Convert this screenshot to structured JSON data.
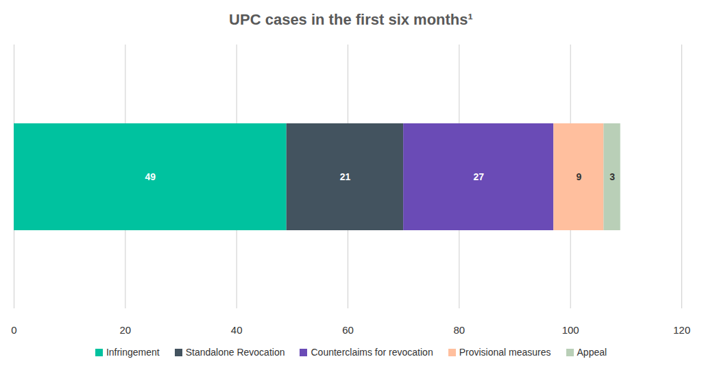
{
  "chart_data": {
    "type": "bar",
    "title": "UPC cases in the first six months¹",
    "orientation": "horizontal",
    "stacked": true,
    "data_labels": true,
    "categories": [
      null
    ],
    "series": [
      {
        "name": "Infringement",
        "color": "#00c29f",
        "values": [
          49
        ]
      },
      {
        "name": "Standalone Revocation",
        "color": "#43535f",
        "values": [
          21
        ]
      },
      {
        "name": "Counterclaims for revocation",
        "color": "#6a4bb6",
        "values": [
          27
        ]
      },
      {
        "name": "Provisional measures",
        "color": "#ffbf9e",
        "values": [
          9
        ]
      },
      {
        "name": "Appeal",
        "color": "#b9cfb7",
        "values": [
          3
        ]
      }
    ],
    "xlim": [
      0,
      120
    ],
    "xticks": [
      0,
      20,
      40,
      60,
      80,
      100,
      120
    ],
    "grid": true,
    "legend": "bottom",
    "tick_labels": "x"
  }
}
